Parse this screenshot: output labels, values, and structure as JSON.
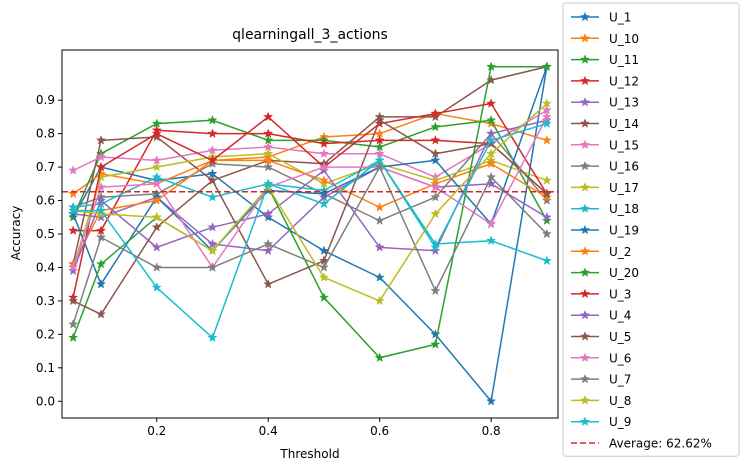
{
  "chart_data": {
    "type": "line",
    "title": "qlearningall_3_actions",
    "xlabel": "Threshold",
    "ylabel": "Accuracy",
    "xlim": [
      0.03,
      0.92
    ],
    "ylim": [
      -0.05,
      1.05
    ],
    "xticks": [
      0.2,
      0.4,
      0.6,
      0.8
    ],
    "xtick_labels": [
      "0.2",
      "0.4",
      "0.6",
      "0.8"
    ],
    "yticks": [
      0.0,
      0.1,
      0.2,
      0.3,
      0.4,
      0.5,
      0.6,
      0.7,
      0.8,
      0.9
    ],
    "ytick_labels": [
      "0.0",
      "0.1",
      "0.2",
      "0.3",
      "0.4",
      "0.5",
      "0.6",
      "0.7",
      "0.8",
      "0.9"
    ],
    "x": [
      0.05,
      0.1,
      0.2,
      0.3,
      0.4,
      0.5,
      0.6,
      0.7,
      0.8,
      0.9
    ],
    "grid": false,
    "legend_position": "outside-right",
    "marker": "star",
    "average": {
      "value": 0.6262,
      "label": "Average: 62.62%",
      "color": "#d62728"
    },
    "series": [
      {
        "name": "U_1",
        "color": "#1f77b4",
        "values": [
          0.55,
          0.7,
          0.66,
          0.68,
          0.55,
          0.45,
          0.37,
          0.2,
          0.0,
          1.0
        ]
      },
      {
        "name": "U_10",
        "color": "#ff7f0e",
        "values": [
          0.62,
          0.68,
          0.65,
          0.72,
          0.73,
          0.79,
          0.8,
          0.86,
          0.83,
          0.78
        ]
      },
      {
        "name": "U_11",
        "color": "#2ca02c",
        "values": [
          0.55,
          0.74,
          0.83,
          0.84,
          0.78,
          0.78,
          0.76,
          0.82,
          0.84,
          0.54
        ]
      },
      {
        "name": "U_12",
        "color": "#d62728",
        "values": [
          0.51,
          0.51,
          0.81,
          0.8,
          0.8,
          0.77,
          0.78,
          0.78,
          0.77,
          0.62
        ]
      },
      {
        "name": "U_13",
        "color": "#9467bd",
        "values": [
          0.56,
          0.55,
          0.61,
          0.47,
          0.45,
          0.61,
          0.7,
          0.64,
          0.65,
          0.55
        ]
      },
      {
        "name": "U_14",
        "color": "#8c564b",
        "values": [
          0.41,
          0.78,
          0.79,
          0.66,
          0.72,
          0.71,
          0.85,
          0.85,
          0.96,
          1.0
        ]
      },
      {
        "name": "U_15",
        "color": "#e377c2",
        "values": [
          0.69,
          0.73,
          0.72,
          0.75,
          0.76,
          0.74,
          0.74,
          0.67,
          0.77,
          0.87
        ]
      },
      {
        "name": "U_16",
        "color": "#7f7f7f",
        "values": [
          0.58,
          0.61,
          0.62,
          0.71,
          0.7,
          0.62,
          0.54,
          0.61,
          0.8,
          0.6
        ]
      },
      {
        "name": "U_17",
        "color": "#bcbd22",
        "values": [
          0.4,
          0.67,
          0.7,
          0.73,
          0.74,
          0.65,
          0.71,
          0.66,
          0.72,
          0.66
        ]
      },
      {
        "name": "U_18",
        "color": "#17becf",
        "values": [
          0.58,
          0.59,
          0.67,
          0.61,
          0.65,
          0.63,
          0.72,
          0.47,
          0.48,
          0.42
        ]
      },
      {
        "name": "U_19",
        "color": "#1f77b4",
        "values": [
          0.56,
          0.35,
          0.61,
          0.45,
          0.63,
          0.62,
          0.7,
          0.72,
          0.53,
          1.0
        ]
      },
      {
        "name": "U_2",
        "color": "#ff7f0e",
        "values": [
          0.41,
          0.57,
          0.6,
          0.72,
          0.72,
          0.66,
          0.58,
          0.65,
          0.71,
          0.61
        ]
      },
      {
        "name": "U_20",
        "color": "#2ca02c",
        "values": [
          0.19,
          0.41,
          0.55,
          0.45,
          0.64,
          0.31,
          0.13,
          0.17,
          1.0,
          1.0
        ]
      },
      {
        "name": "U_3",
        "color": "#d62728",
        "values": [
          0.31,
          0.7,
          0.8,
          0.72,
          0.85,
          0.7,
          0.83,
          0.86,
          0.89,
          0.62
        ]
      },
      {
        "name": "U_4",
        "color": "#9467bd",
        "values": [
          0.39,
          0.6,
          0.46,
          0.52,
          0.56,
          0.69,
          0.46,
          0.45,
          0.8,
          0.84
        ]
      },
      {
        "name": "U_5",
        "color": "#8c564b",
        "values": [
          0.3,
          0.26,
          0.52,
          0.66,
          0.35,
          0.42,
          0.84,
          0.74,
          0.77,
          0.62
        ]
      },
      {
        "name": "U_6",
        "color": "#e377c2",
        "values": [
          0.4,
          0.64,
          0.65,
          0.4,
          0.64,
          0.7,
          0.7,
          0.64,
          0.53,
          0.85
        ]
      },
      {
        "name": "U_7",
        "color": "#7f7f7f",
        "values": [
          0.23,
          0.49,
          0.4,
          0.4,
          0.47,
          0.4,
          0.7,
          0.33,
          0.67,
          0.5
        ]
      },
      {
        "name": "U_8",
        "color": "#bcbd22",
        "values": [
          0.57,
          0.56,
          0.55,
          0.45,
          0.64,
          0.37,
          0.3,
          0.56,
          0.74,
          0.89
        ]
      },
      {
        "name": "U_9",
        "color": "#17becf",
        "values": [
          0.57,
          0.57,
          0.34,
          0.19,
          0.65,
          0.59,
          0.72,
          0.46,
          0.78,
          0.83
        ]
      }
    ]
  }
}
